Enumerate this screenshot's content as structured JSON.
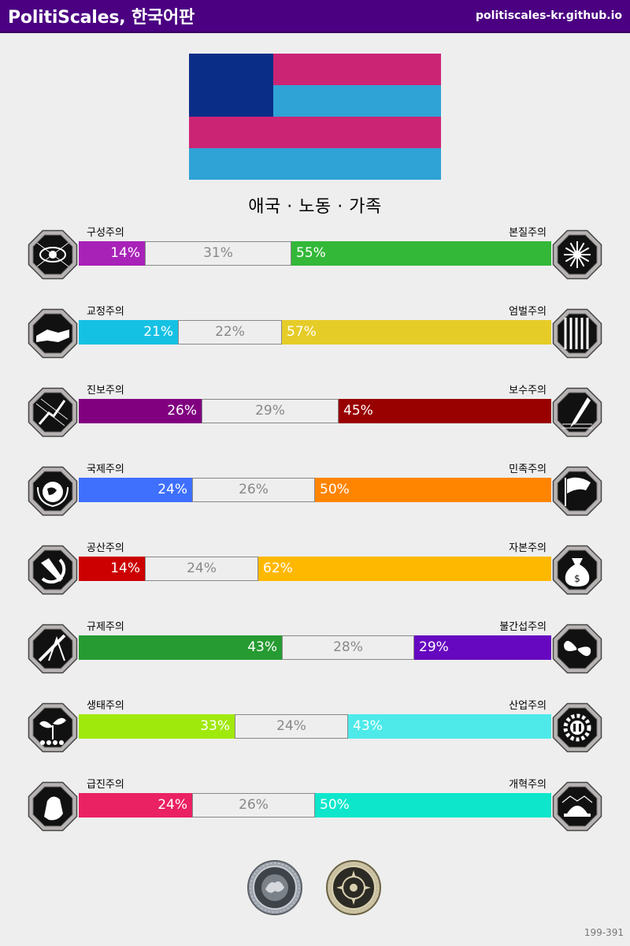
{
  "header": {
    "title": "PolitiScales, 한국어판",
    "url": "politiscales-kr.github.io"
  },
  "flag": {
    "colors": {
      "canton": "#0a2d87",
      "pink": "#cc2475",
      "blue": "#2fa3d6"
    }
  },
  "ideology": "애국 · 노동 · 가족",
  "axes": [
    {
      "left_label": "구성주의",
      "right_label": "본질주의",
      "left_pct": "14%",
      "mid_pct": "31%",
      "right_pct": "55%",
      "left_value": 14,
      "mid_value": 31,
      "right_value": 55,
      "left_color": "#a822b8",
      "right_color": "#33b838",
      "left_icon": "eye-icon",
      "right_icon": "chrysanthemum-icon"
    },
    {
      "left_label": "교정주의",
      "right_label": "엄벌주의",
      "left_pct": "21%",
      "mid_pct": "22%",
      "right_pct": "57%",
      "left_value": 21,
      "mid_value": 22,
      "right_value": 57,
      "left_color": "#15c1e3",
      "right_color": "#e6cc27",
      "left_icon": "handshake-icon",
      "right_icon": "prison-bars-icon"
    },
    {
      "left_label": "진보주의",
      "right_label": "보수주의",
      "left_pct": "26%",
      "mid_pct": "29%",
      "right_pct": "45%",
      "left_value": 26,
      "mid_value": 29,
      "right_value": 45,
      "left_color": "#800080",
      "right_color": "#990000",
      "left_icon": "hand-light-icon",
      "right_icon": "quill-pen-icon"
    },
    {
      "left_label": "국제주의",
      "right_label": "민족주의",
      "left_pct": "24%",
      "mid_pct": "26%",
      "right_pct": "50%",
      "left_value": 24,
      "mid_value": 26,
      "right_value": 50,
      "left_color": "#3e6ffd",
      "right_color": "#ff8500",
      "left_icon": "globe-laurel-icon",
      "right_icon": "flag-icon"
    },
    {
      "left_label": "공산주의",
      "right_label": "자본주의",
      "left_pct": "14%",
      "mid_pct": "24%",
      "right_pct": "62%",
      "left_value": 14,
      "mid_value": 24,
      "right_value": 62,
      "left_color": "#cc0000",
      "right_color": "#ffb800",
      "left_icon": "hammer-sickle-icon",
      "right_icon": "money-bag-icon"
    },
    {
      "left_label": "규제주의",
      "right_label": "불간섭주의",
      "left_pct": "43%",
      "mid_pct": "28%",
      "right_pct": "29%",
      "left_value": 43,
      "mid_value": 28,
      "right_value": 29,
      "left_color": "#269b32",
      "right_color": "#6608c0",
      "left_icon": "ruler-compass-icon",
      "right_icon": "butterflies-icon"
    },
    {
      "left_label": "생태주의",
      "right_label": "산업주의",
      "left_pct": "33%",
      "mid_pct": "24%",
      "right_pct": "43%",
      "left_value": 33,
      "mid_value": 24,
      "right_value": 43,
      "left_color": "#a0e90d",
      "right_color": "#4deae9",
      "left_icon": "sprout-icon",
      "right_icon": "gear-icon"
    },
    {
      "left_label": "급진주의",
      "right_label": "개혁주의",
      "left_pct": "24%",
      "mid_pct": "26%",
      "right_pct": "50%",
      "left_value": 24,
      "mid_value": 26,
      "right_value": 50,
      "left_color": "#ea2163",
      "right_color": "#0de6cb",
      "left_icon": "fist-icon",
      "right_icon": "parliament-icon"
    }
  ],
  "badges": [
    {
      "icon": "silver-seal-icon"
    },
    {
      "icon": "gold-seal-icon"
    }
  ],
  "footer": {
    "code": "199-391"
  }
}
